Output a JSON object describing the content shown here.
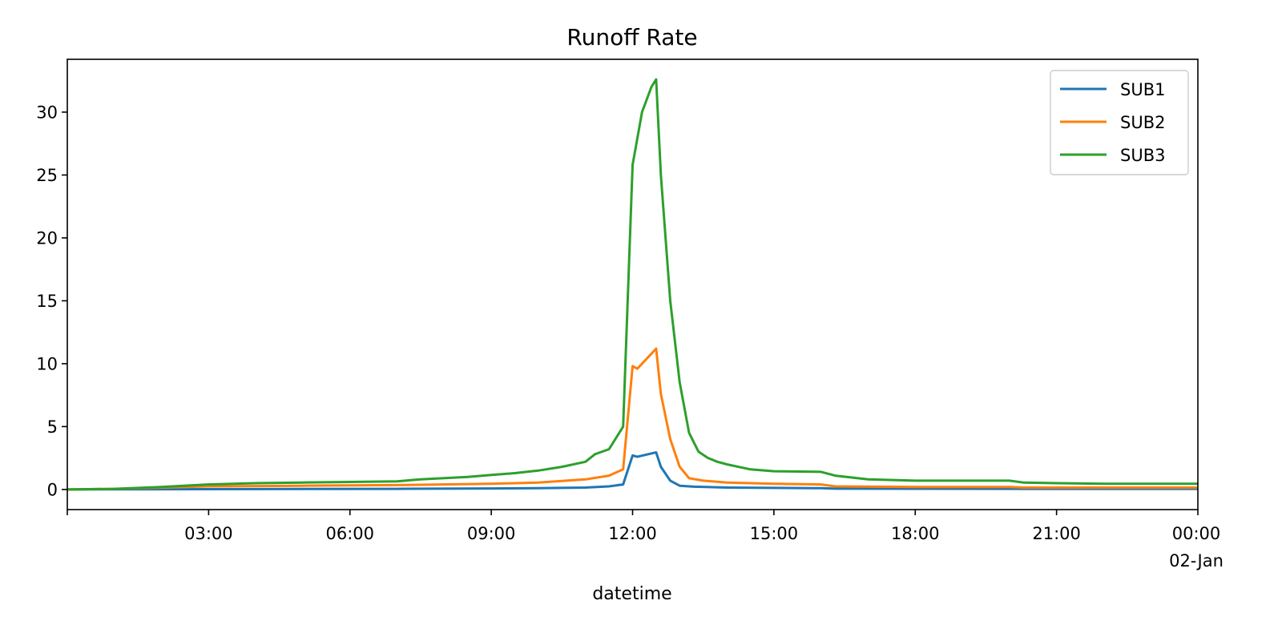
{
  "chart_data": {
    "type": "line",
    "title": "Runoff Rate",
    "xlabel": "datetime",
    "ylabel": "",
    "x_tick_labels": [
      {
        "hour": 3,
        "label": "03:00"
      },
      {
        "hour": 6,
        "label": "06:00"
      },
      {
        "hour": 9,
        "label": "09:00"
      },
      {
        "hour": 12,
        "label": "12:00"
      },
      {
        "hour": 15,
        "label": "15:00"
      },
      {
        "hour": 18,
        "label": "18:00"
      },
      {
        "hour": 21,
        "label": "21:00"
      },
      {
        "hour": 24,
        "label": "00:00",
        "sublabel": "02-Jan"
      }
    ],
    "xlim": [
      0,
      24
    ],
    "ylim": [
      -1.6,
      34.2
    ],
    "y_ticks": [
      0,
      5,
      10,
      15,
      20,
      25,
      30
    ],
    "grid": false,
    "legend_position": "top-right",
    "series": [
      {
        "name": "SUB1",
        "color": "#1f77b4",
        "points": [
          [
            0,
            0
          ],
          [
            2,
            0.02
          ],
          [
            4,
            0.03
          ],
          [
            7,
            0.05
          ],
          [
            9,
            0.08
          ],
          [
            10,
            0.1
          ],
          [
            11,
            0.15
          ],
          [
            11.5,
            0.25
          ],
          [
            11.8,
            0.4
          ],
          [
            12,
            2.7
          ],
          [
            12.1,
            2.6
          ],
          [
            12.5,
            2.95
          ],
          [
            12.6,
            1.8
          ],
          [
            12.8,
            0.7
          ],
          [
            13,
            0.3
          ],
          [
            13.3,
            0.22
          ],
          [
            14,
            0.15
          ],
          [
            16,
            0.1
          ],
          [
            16.3,
            0.06
          ],
          [
            20,
            0.05
          ],
          [
            24,
            0.05
          ]
        ]
      },
      {
        "name": "SUB2",
        "color": "#ff7f0e",
        "points": [
          [
            0,
            0
          ],
          [
            1,
            0.05
          ],
          [
            2,
            0.15
          ],
          [
            3,
            0.25
          ],
          [
            5,
            0.3
          ],
          [
            7,
            0.35
          ],
          [
            8,
            0.4
          ],
          [
            9,
            0.45
          ],
          [
            10,
            0.55
          ],
          [
            11,
            0.8
          ],
          [
            11.5,
            1.1
          ],
          [
            11.8,
            1.6
          ],
          [
            12,
            9.8
          ],
          [
            12.1,
            9.6
          ],
          [
            12.5,
            11.2
          ],
          [
            12.6,
            7.6
          ],
          [
            12.8,
            4
          ],
          [
            13,
            1.8
          ],
          [
            13.2,
            0.9
          ],
          [
            13.5,
            0.7
          ],
          [
            14,
            0.55
          ],
          [
            15,
            0.45
          ],
          [
            16,
            0.4
          ],
          [
            16.3,
            0.25
          ],
          [
            18,
            0.2
          ],
          [
            20,
            0.2
          ],
          [
            20.3,
            0.15
          ],
          [
            24,
            0.15
          ]
        ]
      },
      {
        "name": "SUB3",
        "color": "#2ca02c",
        "points": [
          [
            0,
            0
          ],
          [
            1,
            0.05
          ],
          [
            2,
            0.2
          ],
          [
            3,
            0.4
          ],
          [
            4,
            0.5
          ],
          [
            5,
            0.55
          ],
          [
            6,
            0.6
          ],
          [
            7,
            0.65
          ],
          [
            7.5,
            0.8
          ],
          [
            8,
            0.9
          ],
          [
            8.5,
            1
          ],
          [
            9,
            1.15
          ],
          [
            9.5,
            1.3
          ],
          [
            10,
            1.5
          ],
          [
            10.5,
            1.8
          ],
          [
            11,
            2.2
          ],
          [
            11.2,
            2.8
          ],
          [
            11.5,
            3.2
          ],
          [
            11.8,
            5
          ],
          [
            12,
            25.8
          ],
          [
            12.2,
            30
          ],
          [
            12.4,
            32
          ],
          [
            12.5,
            32.6
          ],
          [
            12.6,
            25
          ],
          [
            12.8,
            15
          ],
          [
            13,
            8.5
          ],
          [
            13.2,
            4.5
          ],
          [
            13.4,
            3
          ],
          [
            13.6,
            2.5
          ],
          [
            13.8,
            2.2
          ],
          [
            14,
            2
          ],
          [
            14.5,
            1.6
          ],
          [
            15,
            1.45
          ],
          [
            16,
            1.4
          ],
          [
            16.3,
            1.1
          ],
          [
            17,
            0.8
          ],
          [
            18,
            0.7
          ],
          [
            19,
            0.7
          ],
          [
            20,
            0.7
          ],
          [
            20.3,
            0.55
          ],
          [
            21,
            0.5
          ],
          [
            22,
            0.45
          ],
          [
            24,
            0.45
          ]
        ]
      }
    ]
  }
}
